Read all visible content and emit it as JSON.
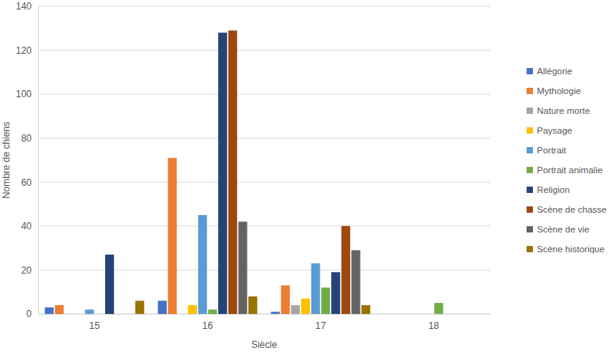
{
  "chart_data": {
    "type": "bar",
    "x_label": "Siècle",
    "y_label": "Nombre de chiens",
    "categories": [
      "15",
      "16",
      "17",
      "18"
    ],
    "series": [
      {
        "name": "Allégorie",
        "color": "#4472c4",
        "values": [
          3,
          6,
          1,
          0
        ]
      },
      {
        "name": "Mythologie",
        "color": "#ed7d31",
        "values": [
          4,
          71,
          13,
          0
        ]
      },
      {
        "name": "Nature morte",
        "color": "#a5a5a5",
        "values": [
          0,
          0,
          4,
          0
        ]
      },
      {
        "name": "Paysage",
        "color": "#ffc000",
        "values": [
          0,
          4,
          7,
          0
        ]
      },
      {
        "name": "Portrait",
        "color": "#5b9bd5",
        "values": [
          2,
          45,
          23,
          0
        ]
      },
      {
        "name": "Portrait animalie",
        "color": "#70ad47",
        "values": [
          0,
          2,
          12,
          5
        ]
      },
      {
        "name": "Religion",
        "color": "#264478",
        "values": [
          27,
          128,
          19,
          0
        ]
      },
      {
        "name": "Scène de chasse",
        "color": "#9e480e",
        "values": [
          0,
          129,
          40,
          0
        ]
      },
      {
        "name": "Scène de vie",
        "color": "#636363",
        "values": [
          0,
          42,
          29,
          0
        ]
      },
      {
        "name": "Scène historique",
        "color": "#997300",
        "values": [
          6,
          8,
          4,
          0
        ]
      }
    ],
    "ylim": [
      0,
      140
    ],
    "yticks": [
      0,
      20,
      40,
      60,
      80,
      100,
      120,
      140
    ],
    "grid": true,
    "legend": "right"
  }
}
